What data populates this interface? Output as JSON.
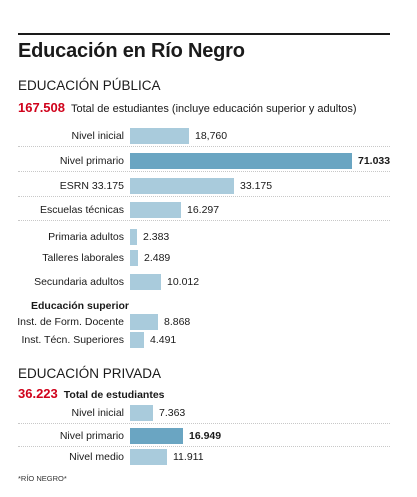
{
  "title": "Educación en Río Negro",
  "footnote": "*RÍO NEGRO*",
  "publica": {
    "heading": "EDUCACIÓN PÚBLICA",
    "total": "167.508",
    "total_label": "Total de estudiantes (incluye educación superior y adultos)",
    "superior_heading": "Educación superior"
  },
  "privada": {
    "heading": "EDUCACIÓN PRIVADA",
    "total": "36.223",
    "total_label": "Total de estudiantes"
  },
  "colors": {
    "bar": "#a9cbdc",
    "bar_highlight": "#6aa5c2",
    "total": "#d0021b"
  },
  "chart_data": [
    {
      "type": "bar",
      "orientation": "horizontal",
      "title": "EDUCACIÓN PÚBLICA",
      "xlim": [
        0,
        71033
      ],
      "categories": [
        "Nivel inicial",
        "Nivel primario",
        "ESRN 33.175",
        "Escuelas técnicas",
        "Primaria adultos",
        "Talleres laborales",
        "Secundaria adultos",
        "Inst. de Form. Docente",
        "Inst. Técn. Superiores"
      ],
      "values": [
        18760,
        71033,
        33175,
        16297,
        2383,
        2489,
        10012,
        8868,
        4491
      ],
      "value_labels": [
        "18,760",
        "71.033",
        "33.175",
        "16.297",
        "2.383",
        "2.489",
        "10.012",
        "8.868",
        "4.491"
      ],
      "highlight": [
        false,
        true,
        false,
        false,
        false,
        false,
        false,
        false,
        false
      ]
    },
    {
      "type": "bar",
      "orientation": "horizontal",
      "title": "EDUCACIÓN PRIVADA",
      "xlim": [
        0,
        71033
      ],
      "categories": [
        "Nivel inicial",
        "Nivel primario",
        "Nivel medio"
      ],
      "values": [
        7363,
        16949,
        11911
      ],
      "value_labels": [
        "7.363",
        "16.949",
        "11.911"
      ],
      "highlight": [
        false,
        true,
        false
      ]
    }
  ]
}
